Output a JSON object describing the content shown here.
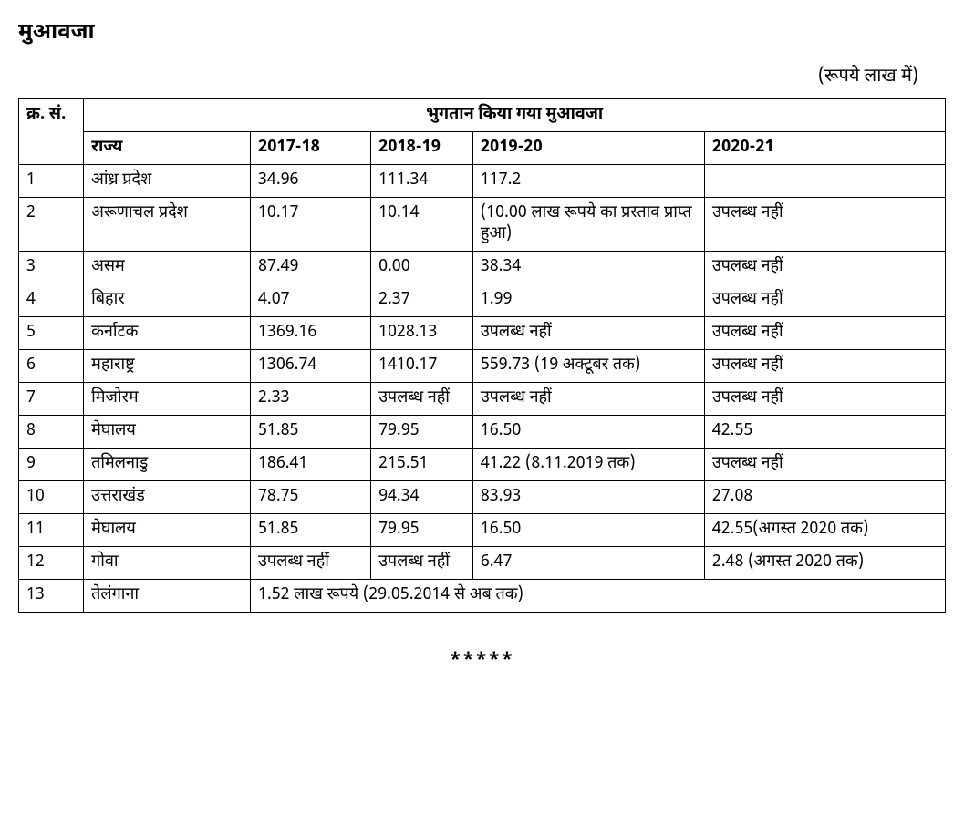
{
  "title": "मुआवजा",
  "unit_label": "(रूपये लाख में)",
  "table": {
    "header_sn": "क्र. सं.",
    "header_main": "भुगतान किया गया मुआवजा",
    "sub_state": "राज्य",
    "sub_y1": "2017-18",
    "sub_y2": "2018-19",
    "sub_y3": "2019-20",
    "sub_y4": "2020-21",
    "rows": [
      {
        "sn": "1",
        "state": "आंध्र प्रदेश",
        "y1": "34.96",
        "y2": "111.34",
        "y3": "117.2",
        "y4": ""
      },
      {
        "sn": "2",
        "state": "अरूणाचल प्रदेश",
        "y1": "10.17",
        "y2": "10.14",
        "y3": " (10.00 लाख रूपये का प्रस्ताव प्राप्त हुआ)",
        "y4": "उपलब्ध नहीं"
      },
      {
        "sn": "3",
        "state": "असम",
        "y1": "87.49",
        "y2": "0.00",
        "y3": "38.34",
        "y4": "उपलब्ध नहीं"
      },
      {
        "sn": "4",
        "state": "बिहार",
        "y1": "4.07",
        "y2": "2.37",
        "y3": "1.99",
        "y4": "उपलब्ध नहीं"
      },
      {
        "sn": "5",
        "state": "कर्नाटक",
        "y1": "1369.16",
        "y2": "1028.13",
        "y3": " उपलब्ध नहीं",
        "y4": "उपलब्ध नहीं"
      },
      {
        "sn": "6",
        "state": "महाराष्ट्र",
        "y1": "1306.74",
        "y2": "1410.17",
        "y3": "559.73 (19 अक्टूबर तक)",
        "y4": "उपलब्ध नहीं"
      },
      {
        "sn": "7",
        "state": "मिजोरम",
        "y1": "2.33",
        "y2": "उपलब्ध नहीं",
        "y3": "उपलब्ध नहीं",
        "y4": "उपलब्ध नहीं"
      },
      {
        "sn": "8",
        "state": "मेघालय",
        "y1": "51.85",
        "y2": "79.95",
        "y3": "16.50",
        "y4": "42.55"
      },
      {
        "sn": "9",
        "state": "तमिलनाडु",
        "y1": "186.41",
        "y2": "215.51",
        "y3": "41.22 (8.11.2019 तक)",
        "y4": "उपलब्ध नहीं"
      },
      {
        "sn": "10",
        "state": "उत्तराखंड",
        "y1": "78.75",
        "y2": "94.34",
        "y3": "83.93",
        "y4": "27.08"
      },
      {
        "sn": "11",
        "state": "मेघालय",
        "y1": "51.85",
        "y2": "79.95",
        "y3": "16.50",
        "y4": "42.55(अगस्त 2020 तक)"
      },
      {
        "sn": "12",
        "state": "गोवा",
        "y1": "उपलब्ध नहीं",
        "y2": "उपलब्ध नहीं",
        "y3": "6.47",
        "y4": "2.48 (अगस्त 2020 तक)"
      }
    ],
    "last_row": {
      "sn": "13",
      "state": "तेलंगाना",
      "merged": "1.52 लाख रूपये (29.05.2014 से अब तक)"
    }
  },
  "footer": "*****"
}
